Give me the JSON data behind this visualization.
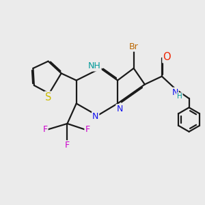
{
  "bg_color": "#ebebeb",
  "bond_color": "#1a1a1a",
  "bond_width": 1.6,
  "dbo": 0.055,
  "atom_colors": {
    "N": "#1010ee",
    "S": "#ccbb00",
    "F": "#cc00cc",
    "Br": "#bb6600",
    "O": "#ee2200",
    "NH": "#009999",
    "C": "#1a1a1a"
  },
  "font_size": 10.5,
  "font_size_small": 9.0,
  "figsize": [
    3.0,
    3.0
  ],
  "dpi": 100
}
